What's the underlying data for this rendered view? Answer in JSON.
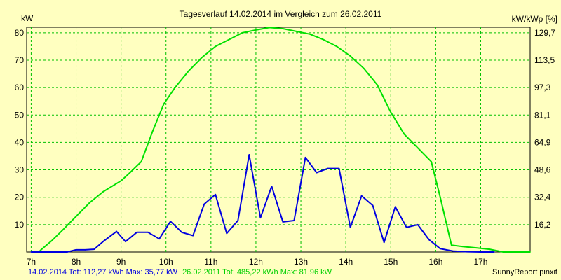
{
  "chart_data": {
    "type": "line",
    "title": "Tagesverlauf 14.02.2014 im Vergleich zum 26.02.2011",
    "ylabel_left": "kW",
    "ylabel_right": "kW/kWp [%]",
    "ylim": [
      0,
      82
    ],
    "yticks_left": [
      "10",
      "20",
      "30",
      "40",
      "50",
      "60",
      "70",
      "80"
    ],
    "yticks_right": [
      "16,2",
      "32,4",
      "48,6",
      "64,9",
      "81,1",
      "97,3",
      "113,5",
      "129,7"
    ],
    "xticks": [
      "7h",
      "8h",
      "9h",
      "10h",
      "11h",
      "12h",
      "13h",
      "14h",
      "15h",
      "16h",
      "17h"
    ],
    "xlim_hours": [
      6.9,
      18.1
    ],
    "series": [
      {
        "name": "26.02.2011",
        "color": "#00E000",
        "x": [
          7.2,
          7.45,
          7.7,
          8.0,
          8.3,
          8.6,
          9.0,
          9.2,
          9.45,
          9.7,
          9.95,
          10.2,
          10.5,
          10.8,
          11.1,
          11.4,
          11.7,
          12.0,
          12.3,
          12.6,
          12.9,
          13.2,
          13.5,
          13.8,
          14.1,
          14.4,
          14.7,
          15.0,
          15.3,
          15.6,
          15.9,
          16.1,
          16.35,
          16.6,
          16.9,
          17.2,
          17.5,
          17.8,
          18.1
        ],
        "values": [
          0.5,
          4,
          8,
          13,
          18,
          22,
          26,
          29,
          33,
          44,
          54,
          60,
          66,
          71,
          75,
          77.5,
          80,
          81,
          81.9,
          81.5,
          80.5,
          79.5,
          77.5,
          75,
          71.5,
          67,
          61,
          51,
          43,
          38,
          33,
          20,
          2.5,
          2,
          1.5,
          1,
          0,
          0,
          0
        ]
      },
      {
        "name": "14.02.2014",
        "color": "#0000E0",
        "x": [
          7.0,
          7.4,
          7.8,
          8.0,
          8.2,
          8.4,
          8.6,
          8.9,
          9.1,
          9.35,
          9.6,
          9.85,
          10.1,
          10.35,
          10.6,
          10.85,
          11.1,
          11.35,
          11.6,
          11.85,
          12.1,
          12.35,
          12.6,
          12.85,
          13.1,
          13.35,
          13.6,
          13.85,
          14.1,
          14.35,
          14.6,
          14.85,
          15.1,
          15.35,
          15.6,
          15.85,
          16.1,
          16.4,
          16.7,
          17.0,
          17.3
        ],
        "values": [
          0,
          0,
          0,
          0.8,
          0.8,
          1,
          3.8,
          7.5,
          3.8,
          7.2,
          7.2,
          4.8,
          11.2,
          7.2,
          6,
          17.5,
          21,
          6.8,
          11.5,
          35.5,
          12.5,
          24,
          11,
          11.5,
          34.5,
          29,
          30.5,
          30.5,
          9,
          20.5,
          17,
          3.5,
          16.5,
          9,
          10,
          4.5,
          1.2,
          0.3,
          0.1,
          0,
          0
        ]
      }
    ],
    "grid": true,
    "legend": "bottom-left"
  },
  "footer": {
    "blue_text": "14.02.2014 Tot: 112,27 kWh Max: 35,77 kW",
    "green_text": "26.02.2011 Tot: 485,22 kWh Max: 81,96 kW",
    "credit": "SunnyReport pinxit"
  }
}
